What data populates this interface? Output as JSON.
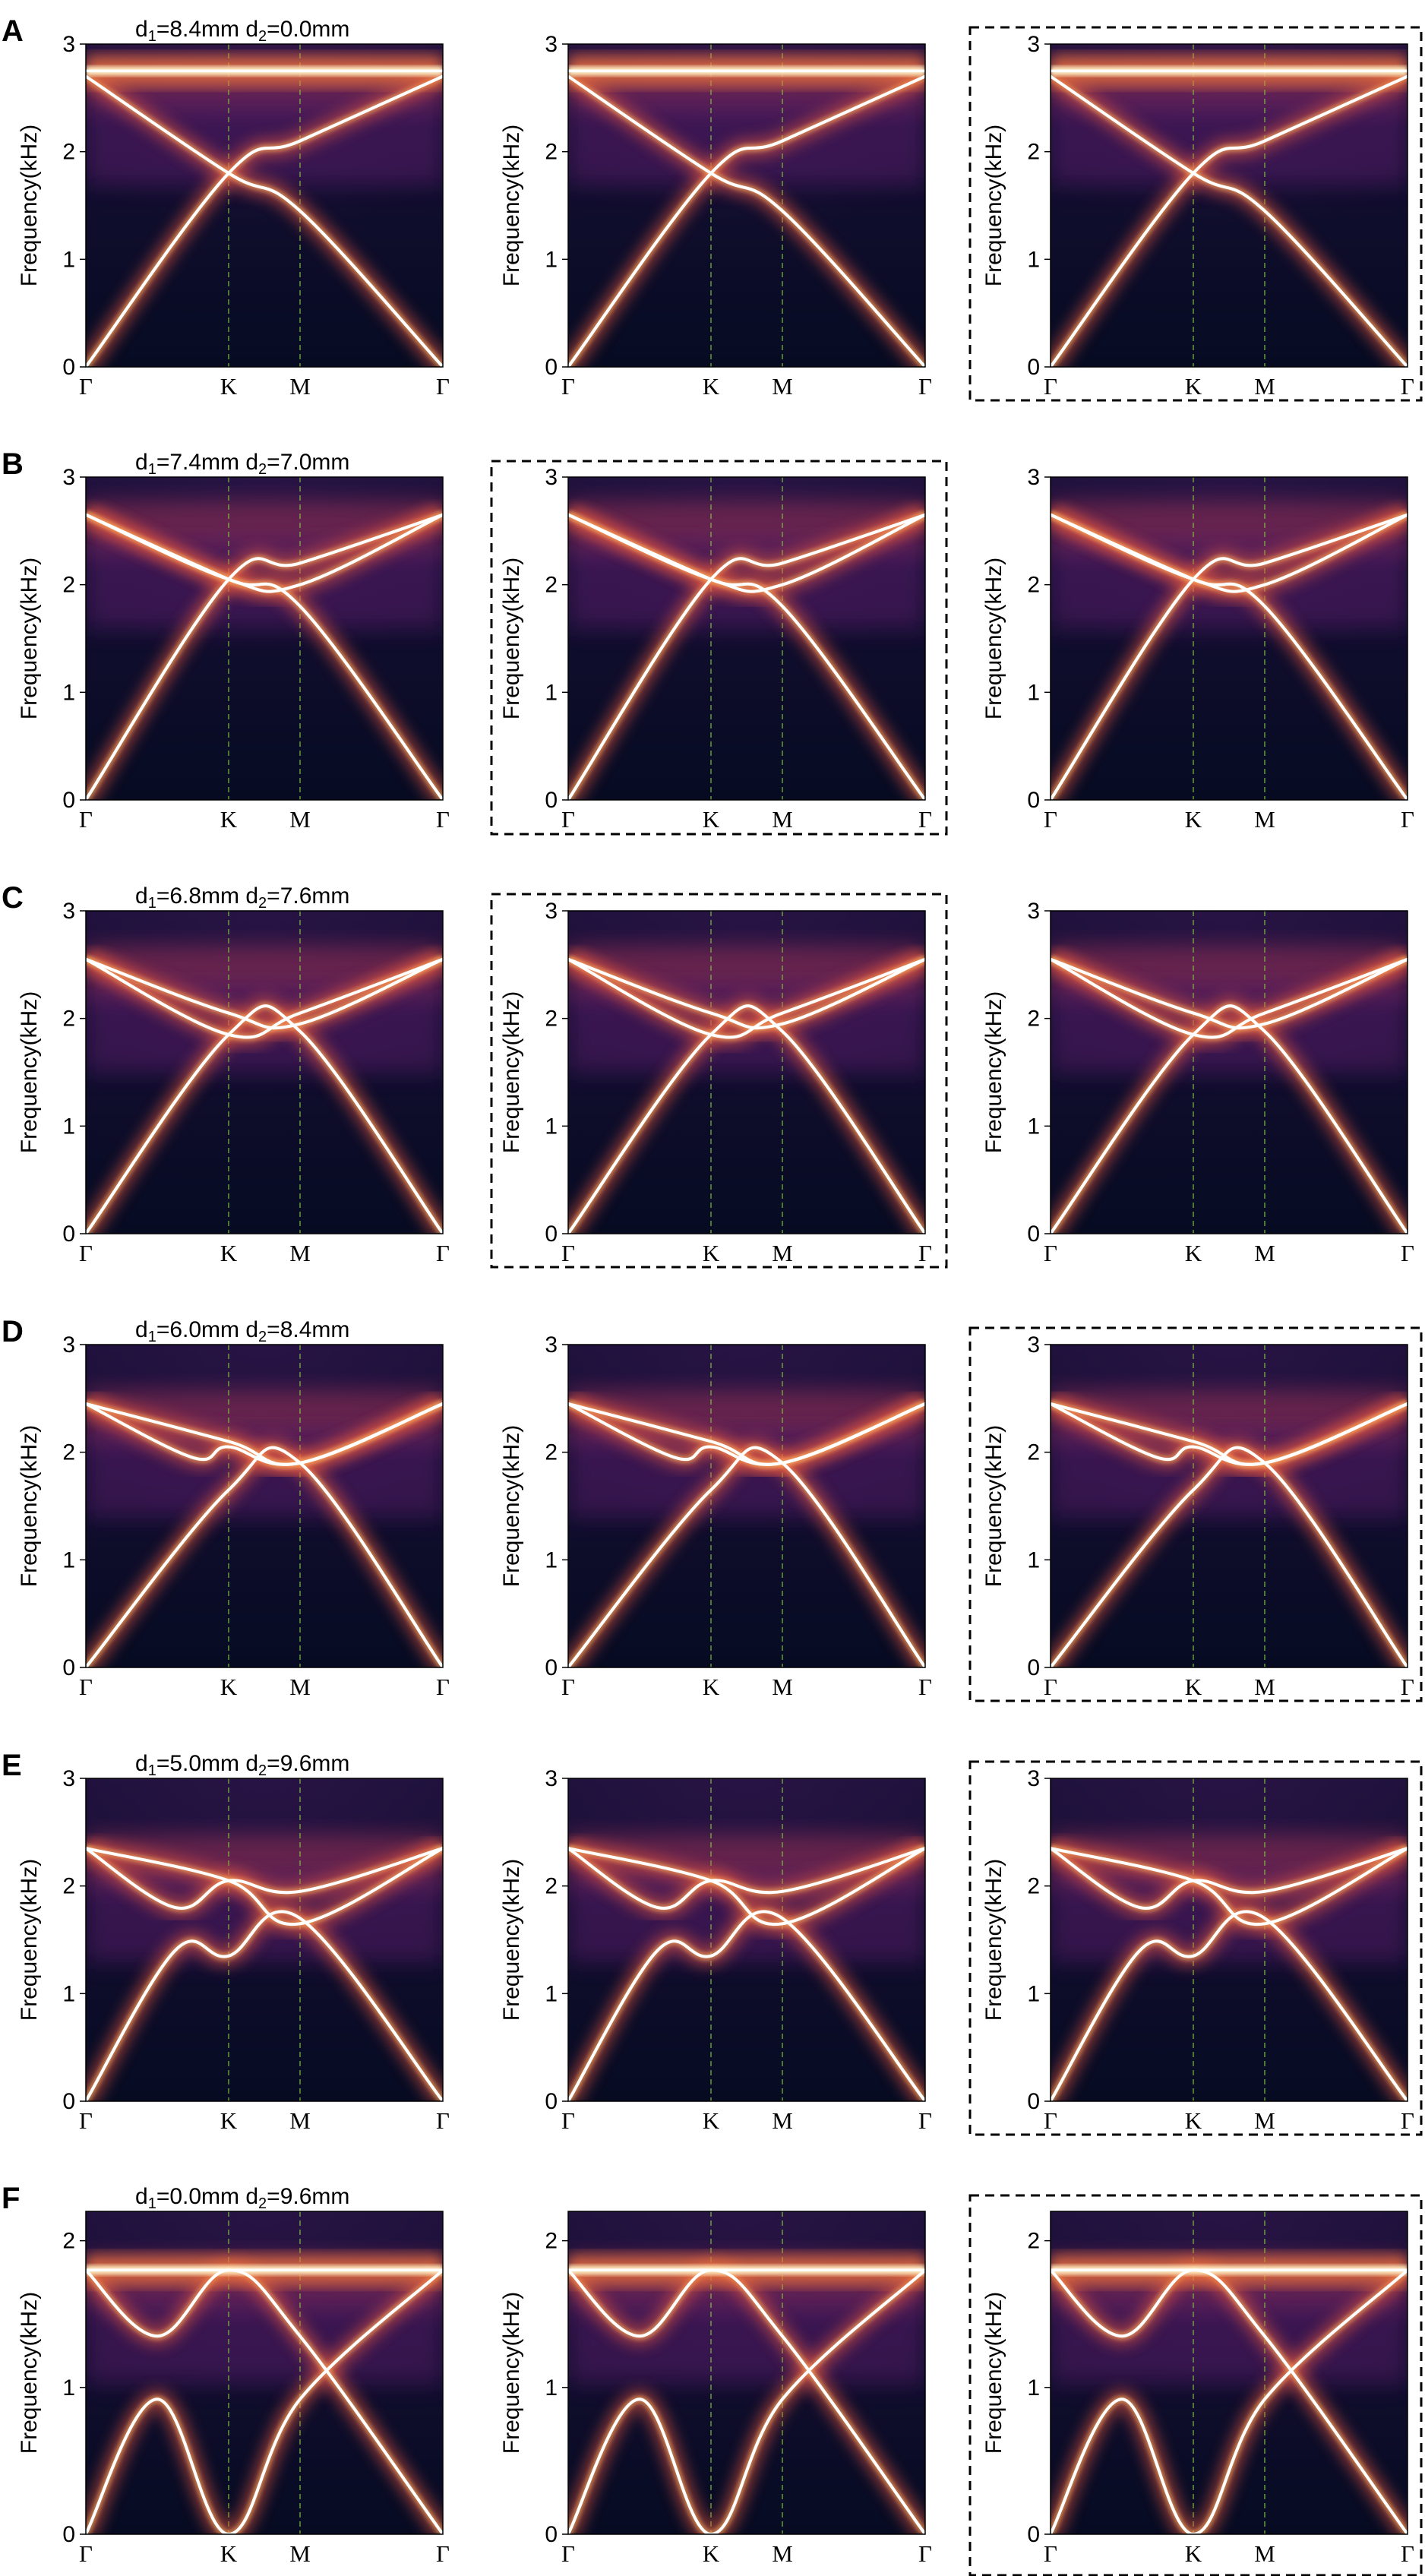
{
  "figure": {
    "row_labels": [
      "A",
      "B",
      "C",
      "D",
      "E",
      "F"
    ],
    "highlight_style": "dashed black frame around the selected panel of each row",
    "colormap": "magma",
    "colors": {
      "background": "#0a1128",
      "curve": "#ffffff",
      "symmetry_line": "#7fbf3f",
      "frame": "#000000"
    }
  },
  "chart_data": [
    {
      "type": "heatmap",
      "row": "A",
      "title_d1": "8.4mm",
      "title_d2": "0.0mm",
      "ylabel": "Frequency(kHz)",
      "ylim": [
        0,
        3
      ],
      "yticks": [
        "0",
        "1",
        "2",
        "3"
      ],
      "x_ticks": [
        "Γ",
        "K",
        "M",
        "Γ"
      ],
      "path_fractions": [
        0,
        0.4,
        0.6,
        1.0
      ],
      "highlighted_panel": 3,
      "band_nodes": [
        [
          [
            0.0,
            0.0
          ],
          [
            0.4,
            1.8
          ],
          [
            0.6,
            2.1
          ],
          [
            1.0,
            2.7
          ]
        ],
        [
          [
            0.0,
            2.7
          ],
          [
            0.4,
            1.8
          ],
          [
            0.6,
            1.45
          ],
          [
            1.0,
            0.0
          ]
        ]
      ],
      "flat_band": 2.75,
      "panels": 3
    },
    {
      "type": "heatmap",
      "row": "B",
      "title_d1": "7.4mm",
      "title_d2": "7.0mm",
      "ylabel": "Frequency(kHz)",
      "ylim": [
        0,
        3
      ],
      "yticks": [
        "0",
        "1",
        "2",
        "3"
      ],
      "x_ticks": [
        "Γ",
        "K",
        "M",
        "Γ"
      ],
      "path_fractions": [
        0,
        0.4,
        0.6,
        1.0
      ],
      "highlighted_panel": 2,
      "band_nodes": [
        [
          [
            0.0,
            0.0
          ],
          [
            0.4,
            2.05
          ],
          [
            0.6,
            2.2
          ],
          [
            1.0,
            2.65
          ]
        ],
        [
          [
            0.0,
            2.65
          ],
          [
            0.4,
            2.05
          ],
          [
            0.6,
            2.0
          ],
          [
            1.0,
            2.65
          ]
        ],
        [
          [
            0.0,
            2.65
          ],
          [
            0.4,
            2.05
          ],
          [
            0.6,
            1.8
          ],
          [
            1.0,
            0.0
          ]
        ]
      ],
      "flat_band": null,
      "panels": 3
    },
    {
      "type": "heatmap",
      "row": "C",
      "title_d1": "6.8mm",
      "title_d2": "7.6mm",
      "ylabel": "Frequency(kHz)",
      "ylim": [
        0,
        3
      ],
      "yticks": [
        "0",
        "1",
        "2",
        "3"
      ],
      "x_ticks": [
        "Γ",
        "K",
        "M",
        "Γ"
      ],
      "path_fractions": [
        0,
        0.4,
        0.6,
        1.0
      ],
      "highlighted_panel": 2,
      "band_nodes": [
        [
          [
            0.0,
            0.0
          ],
          [
            0.4,
            1.85
          ],
          [
            0.6,
            1.88
          ],
          [
            1.0,
            0.0
          ]
        ],
        [
          [
            0.0,
            2.55
          ],
          [
            0.4,
            1.85
          ],
          [
            0.6,
            2.05
          ],
          [
            1.0,
            2.55
          ]
        ],
        [
          [
            0.0,
            2.55
          ],
          [
            0.4,
            2.05
          ],
          [
            0.6,
            1.95
          ],
          [
            1.0,
            2.55
          ]
        ]
      ],
      "flat_band": null,
      "panels": 3
    },
    {
      "type": "heatmap",
      "row": "D",
      "title_d1": "6.0mm",
      "title_d2": "8.4mm",
      "ylabel": "Frequency(kHz)",
      "ylim": [
        0,
        3
      ],
      "yticks": [
        "0",
        "1",
        "2",
        "3"
      ],
      "x_ticks": [
        "Γ",
        "K",
        "M",
        "Γ"
      ],
      "path_fractions": [
        0,
        0.4,
        0.6,
        1.0
      ],
      "highlighted_panel": 3,
      "band_nodes": [
        [
          [
            0.0,
            0.0
          ],
          [
            0.4,
            1.65
          ],
          [
            0.6,
            1.9
          ],
          [
            1.0,
            0.0
          ]
        ],
        [
          [
            0.0,
            2.45
          ],
          [
            0.3,
            1.95
          ],
          [
            0.4,
            2.05
          ],
          [
            0.6,
            1.9
          ],
          [
            1.0,
            2.45
          ]
        ],
        [
          [
            0.0,
            2.45
          ],
          [
            0.4,
            2.1
          ],
          [
            0.6,
            1.9
          ],
          [
            1.0,
            2.45
          ]
        ]
      ],
      "flat_band": null,
      "panels": 3
    },
    {
      "type": "heatmap",
      "row": "E",
      "title_d1": "5.0mm",
      "title_d2": "9.6mm",
      "ylabel": "Frequency(kHz)",
      "ylim": [
        0,
        3
      ],
      "yticks": [
        "0",
        "1",
        "2",
        "3"
      ],
      "x_ticks": [
        "Γ",
        "K",
        "M",
        "Γ"
      ],
      "path_fractions": [
        0,
        0.4,
        0.6,
        1.0
      ],
      "highlighted_panel": 3,
      "band_nodes": [
        [
          [
            0.0,
            0.0
          ],
          [
            0.25,
            1.4
          ],
          [
            0.4,
            1.35
          ],
          [
            0.6,
            1.7
          ],
          [
            1.0,
            0.0
          ]
        ],
        [
          [
            0.0,
            2.35
          ],
          [
            0.25,
            1.8
          ],
          [
            0.4,
            2.05
          ],
          [
            0.6,
            1.95
          ],
          [
            1.0,
            2.35
          ]
        ],
        [
          [
            0.0,
            2.35
          ],
          [
            0.4,
            2.05
          ],
          [
            0.6,
            1.65
          ],
          [
            1.0,
            2.35
          ]
        ]
      ],
      "flat_band": null,
      "panels": 3
    },
    {
      "type": "heatmap",
      "row": "F",
      "title_d1": "0.0mm",
      "title_d2": "9.6mm",
      "ylabel": "Frequency(kHz)",
      "ylim": [
        0,
        2.2
      ],
      "yticks": [
        "0",
        "1",
        "2"
      ],
      "x_ticks": [
        "Γ",
        "K",
        "M",
        "Γ"
      ],
      "path_fractions": [
        0,
        0.4,
        0.6,
        1.0
      ],
      "highlighted_panel": 3,
      "band_nodes": [
        [
          [
            0.0,
            0.0
          ],
          [
            0.2,
            0.92
          ],
          [
            0.4,
            0.0
          ],
          [
            0.6,
            0.92
          ],
          [
            1.0,
            1.8
          ]
        ],
        [
          [
            0.0,
            1.8
          ],
          [
            0.2,
            1.35
          ],
          [
            0.4,
            1.8
          ],
          [
            0.6,
            1.35
          ],
          [
            1.0,
            0.0
          ]
        ]
      ],
      "flat_band": 1.8,
      "panels": 3
    }
  ]
}
